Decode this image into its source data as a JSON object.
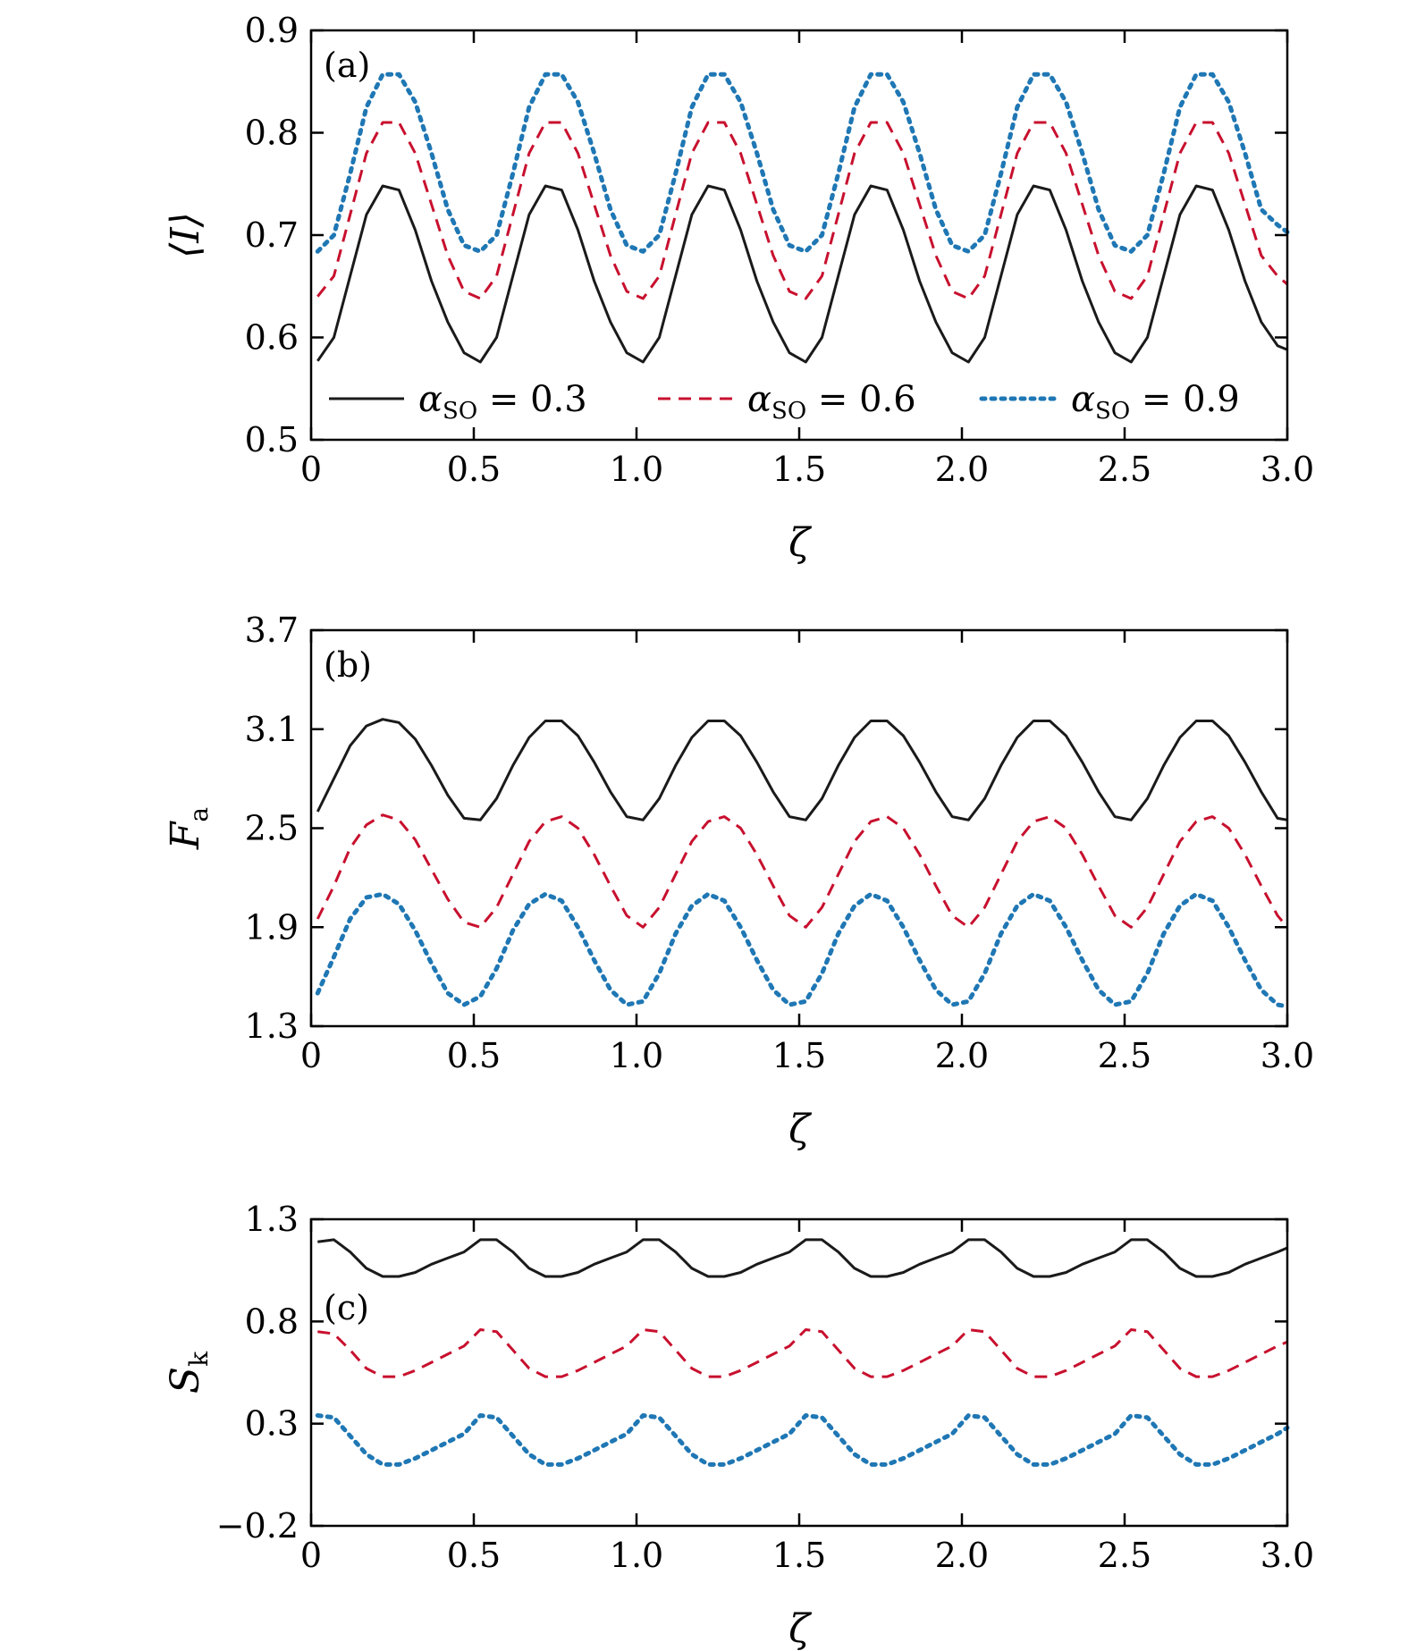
{
  "colors": {
    "series_1": "#1a1a1a",
    "series_2": "#c8102e",
    "series_3": "#1f77b4"
  },
  "legend": {
    "placement": "bottom-inside-panel-a",
    "entries": [
      {
        "symbol": "α",
        "subscript": "SO",
        "rest": " = 0.3",
        "style": "solid"
      },
      {
        "symbol": "α",
        "subscript": "SO",
        "rest": " = 0.6",
        "style": "dashed"
      },
      {
        "symbol": "α",
        "subscript": "SO",
        "rest": " = 0.9",
        "style": "dotted"
      }
    ]
  },
  "chart_data": [
    {
      "type": "line",
      "panel": "(a)",
      "xlabel": "ζ",
      "ylabel": "⟨I⟩",
      "ylabel_sub": "",
      "xlim": [
        0,
        3.0
      ],
      "ylim": [
        0.5,
        0.9
      ],
      "xticks": [
        "0",
        "0.5",
        "1.0",
        "1.5",
        "2.0",
        "2.5",
        "3.0"
      ],
      "yticks": [
        "0.5",
        "0.6",
        "0.7",
        "0.8",
        "0.9"
      ],
      "grid": false,
      "x": [
        0.02,
        0.07,
        0.12,
        0.17,
        0.22,
        0.27,
        0.32,
        0.37,
        0.42,
        0.47,
        0.52,
        0.57,
        0.62,
        0.67,
        0.72,
        0.77,
        0.82,
        0.87,
        0.92,
        0.97,
        1.02,
        1.07,
        1.12,
        1.17,
        1.22,
        1.27,
        1.32,
        1.37,
        1.42,
        1.47,
        1.52,
        1.57,
        1.62,
        1.67,
        1.72,
        1.77,
        1.82,
        1.87,
        1.92,
        1.97,
        2.02,
        2.07,
        2.12,
        2.17,
        2.22,
        2.27,
        2.32,
        2.37,
        2.42,
        2.47,
        2.52,
        2.57,
        2.62,
        2.67,
        2.72,
        2.77,
        2.82,
        2.87,
        2.92,
        2.97,
        3.0
      ],
      "series": [
        {
          "style": "solid",
          "values": [
            0.577,
            0.6,
            0.66,
            0.72,
            0.748,
            0.744,
            0.705,
            0.655,
            0.615,
            0.585,
            0.576,
            0.6,
            0.66,
            0.72,
            0.748,
            0.744,
            0.705,
            0.655,
            0.615,
            0.585,
            0.576,
            0.6,
            0.66,
            0.72,
            0.748,
            0.744,
            0.705,
            0.655,
            0.615,
            0.585,
            0.576,
            0.6,
            0.66,
            0.72,
            0.748,
            0.744,
            0.705,
            0.655,
            0.615,
            0.585,
            0.576,
            0.6,
            0.66,
            0.72,
            0.748,
            0.744,
            0.705,
            0.655,
            0.615,
            0.585,
            0.576,
            0.6,
            0.66,
            0.72,
            0.748,
            0.744,
            0.705,
            0.655,
            0.615,
            0.592,
            0.588
          ]
        },
        {
          "style": "dashed",
          "values": [
            0.64,
            0.66,
            0.72,
            0.78,
            0.81,
            0.81,
            0.78,
            0.73,
            0.68,
            0.645,
            0.638,
            0.66,
            0.72,
            0.78,
            0.81,
            0.81,
            0.78,
            0.73,
            0.68,
            0.645,
            0.638,
            0.66,
            0.72,
            0.78,
            0.81,
            0.81,
            0.78,
            0.73,
            0.68,
            0.645,
            0.638,
            0.66,
            0.72,
            0.78,
            0.81,
            0.81,
            0.78,
            0.73,
            0.68,
            0.645,
            0.638,
            0.66,
            0.72,
            0.78,
            0.81,
            0.81,
            0.78,
            0.73,
            0.68,
            0.645,
            0.638,
            0.66,
            0.72,
            0.78,
            0.81,
            0.81,
            0.78,
            0.73,
            0.68,
            0.66,
            0.652
          ]
        },
        {
          "style": "dotted",
          "values": [
            0.684,
            0.7,
            0.76,
            0.825,
            0.857,
            0.857,
            0.83,
            0.78,
            0.725,
            0.69,
            0.684,
            0.7,
            0.76,
            0.825,
            0.857,
            0.857,
            0.83,
            0.78,
            0.725,
            0.69,
            0.684,
            0.7,
            0.76,
            0.825,
            0.857,
            0.857,
            0.83,
            0.78,
            0.725,
            0.69,
            0.684,
            0.7,
            0.76,
            0.825,
            0.857,
            0.857,
            0.83,
            0.78,
            0.725,
            0.69,
            0.684,
            0.7,
            0.76,
            0.825,
            0.857,
            0.857,
            0.83,
            0.78,
            0.725,
            0.69,
            0.684,
            0.7,
            0.76,
            0.825,
            0.857,
            0.857,
            0.83,
            0.78,
            0.725,
            0.71,
            0.703
          ]
        }
      ]
    },
    {
      "type": "line",
      "panel": "(b)",
      "xlabel": "ζ",
      "ylabel": "F",
      "ylabel_sub": "a",
      "xlim": [
        0,
        3.0
      ],
      "ylim": [
        1.3,
        3.7
      ],
      "xticks": [
        "0",
        "0.5",
        "1.0",
        "1.5",
        "2.0",
        "2.5",
        "3.0"
      ],
      "yticks": [
        "1.3",
        "1.9",
        "2.5",
        "3.1",
        "3.7"
      ],
      "grid": false,
      "x": [
        0.02,
        0.07,
        0.12,
        0.17,
        0.22,
        0.27,
        0.32,
        0.37,
        0.42,
        0.47,
        0.52,
        0.57,
        0.62,
        0.67,
        0.72,
        0.77,
        0.82,
        0.87,
        0.92,
        0.97,
        1.02,
        1.07,
        1.12,
        1.17,
        1.22,
        1.27,
        1.32,
        1.37,
        1.42,
        1.47,
        1.52,
        1.57,
        1.62,
        1.67,
        1.72,
        1.77,
        1.82,
        1.87,
        1.92,
        1.97,
        2.02,
        2.07,
        2.12,
        2.17,
        2.22,
        2.27,
        2.32,
        2.37,
        2.42,
        2.47,
        2.52,
        2.57,
        2.62,
        2.67,
        2.72,
        2.77,
        2.82,
        2.87,
        2.92,
        2.97,
        3.0
      ],
      "series": [
        {
          "style": "solid",
          "values": [
            2.6,
            2.8,
            3.0,
            3.12,
            3.16,
            3.14,
            3.04,
            2.88,
            2.7,
            2.56,
            2.55,
            2.68,
            2.88,
            3.05,
            3.15,
            3.15,
            3.06,
            2.9,
            2.72,
            2.57,
            2.55,
            2.68,
            2.88,
            3.05,
            3.15,
            3.15,
            3.06,
            2.9,
            2.72,
            2.57,
            2.55,
            2.68,
            2.88,
            3.05,
            3.15,
            3.15,
            3.06,
            2.9,
            2.72,
            2.57,
            2.55,
            2.68,
            2.88,
            3.05,
            3.15,
            3.15,
            3.06,
            2.9,
            2.72,
            2.57,
            2.55,
            2.68,
            2.88,
            3.05,
            3.15,
            3.15,
            3.06,
            2.9,
            2.72,
            2.56,
            2.55
          ]
        },
        {
          "style": "dashed",
          "values": [
            1.95,
            2.15,
            2.38,
            2.52,
            2.58,
            2.55,
            2.43,
            2.25,
            2.07,
            1.93,
            1.9,
            2.02,
            2.22,
            2.42,
            2.54,
            2.57,
            2.5,
            2.34,
            2.15,
            1.97,
            1.9,
            2.02,
            2.22,
            2.42,
            2.54,
            2.57,
            2.5,
            2.34,
            2.15,
            1.97,
            1.9,
            2.02,
            2.22,
            2.42,
            2.54,
            2.57,
            2.5,
            2.34,
            2.15,
            1.97,
            1.9,
            2.02,
            2.22,
            2.42,
            2.54,
            2.57,
            2.5,
            2.34,
            2.15,
            1.97,
            1.9,
            2.02,
            2.22,
            2.42,
            2.54,
            2.57,
            2.5,
            2.34,
            2.15,
            1.97,
            1.9
          ]
        },
        {
          "style": "dotted",
          "values": [
            1.5,
            1.72,
            1.95,
            2.08,
            2.1,
            2.04,
            1.88,
            1.68,
            1.5,
            1.43,
            1.48,
            1.65,
            1.88,
            2.04,
            2.1,
            2.06,
            1.9,
            1.7,
            1.52,
            1.43,
            1.45,
            1.62,
            1.86,
            2.03,
            2.1,
            2.06,
            1.9,
            1.7,
            1.52,
            1.43,
            1.45,
            1.62,
            1.86,
            2.03,
            2.1,
            2.06,
            1.9,
            1.7,
            1.52,
            1.43,
            1.45,
            1.62,
            1.86,
            2.03,
            2.1,
            2.06,
            1.9,
            1.7,
            1.52,
            1.43,
            1.45,
            1.62,
            1.86,
            2.03,
            2.1,
            2.06,
            1.9,
            1.7,
            1.52,
            1.43,
            1.42
          ]
        }
      ]
    },
    {
      "type": "line",
      "panel": "(c)",
      "xlabel": "ζ",
      "ylabel": "S",
      "ylabel_sub": "k",
      "xlim": [
        0,
        3.0
      ],
      "ylim": [
        -0.2,
        1.3
      ],
      "xticks": [
        "0",
        "0.5",
        "1.0",
        "1.5",
        "2.0",
        "2.5",
        "3.0"
      ],
      "yticks": [
        "−0.2",
        "0.3",
        "0.8",
        "1.3"
      ],
      "grid": false,
      "x": [
        0.02,
        0.07,
        0.12,
        0.17,
        0.22,
        0.27,
        0.32,
        0.37,
        0.42,
        0.47,
        0.52,
        0.57,
        0.62,
        0.67,
        0.72,
        0.77,
        0.82,
        0.87,
        0.92,
        0.97,
        1.02,
        1.07,
        1.12,
        1.17,
        1.22,
        1.27,
        1.32,
        1.37,
        1.42,
        1.47,
        1.52,
        1.57,
        1.62,
        1.67,
        1.72,
        1.77,
        1.82,
        1.87,
        1.92,
        1.97,
        2.02,
        2.07,
        2.12,
        2.17,
        2.22,
        2.27,
        2.32,
        2.37,
        2.42,
        2.47,
        2.52,
        2.57,
        2.62,
        2.67,
        2.72,
        2.77,
        2.82,
        2.87,
        2.92,
        2.97,
        3.0
      ],
      "series": [
        {
          "style": "solid",
          "values": [
            1.19,
            1.2,
            1.14,
            1.06,
            1.02,
            1.02,
            1.04,
            1.08,
            1.11,
            1.14,
            1.2,
            1.2,
            1.14,
            1.06,
            1.02,
            1.02,
            1.04,
            1.08,
            1.11,
            1.14,
            1.2,
            1.2,
            1.14,
            1.06,
            1.02,
            1.02,
            1.04,
            1.08,
            1.11,
            1.14,
            1.2,
            1.2,
            1.14,
            1.06,
            1.02,
            1.02,
            1.04,
            1.08,
            1.11,
            1.14,
            1.2,
            1.2,
            1.14,
            1.06,
            1.02,
            1.02,
            1.04,
            1.08,
            1.11,
            1.14,
            1.2,
            1.2,
            1.14,
            1.06,
            1.02,
            1.02,
            1.04,
            1.08,
            1.11,
            1.14,
            1.16
          ]
        },
        {
          "style": "dashed",
          "values": [
            0.75,
            0.74,
            0.66,
            0.57,
            0.53,
            0.53,
            0.56,
            0.6,
            0.64,
            0.68,
            0.76,
            0.75,
            0.66,
            0.57,
            0.53,
            0.53,
            0.56,
            0.6,
            0.64,
            0.68,
            0.76,
            0.75,
            0.66,
            0.57,
            0.53,
            0.53,
            0.56,
            0.6,
            0.64,
            0.68,
            0.76,
            0.75,
            0.66,
            0.57,
            0.53,
            0.53,
            0.56,
            0.6,
            0.64,
            0.68,
            0.76,
            0.75,
            0.66,
            0.57,
            0.53,
            0.53,
            0.56,
            0.6,
            0.64,
            0.68,
            0.76,
            0.75,
            0.66,
            0.57,
            0.53,
            0.53,
            0.56,
            0.6,
            0.64,
            0.68,
            0.7
          ]
        },
        {
          "style": "dotted",
          "values": [
            0.34,
            0.33,
            0.24,
            0.15,
            0.1,
            0.1,
            0.13,
            0.17,
            0.21,
            0.25,
            0.34,
            0.33,
            0.24,
            0.15,
            0.1,
            0.1,
            0.13,
            0.17,
            0.21,
            0.25,
            0.34,
            0.33,
            0.24,
            0.15,
            0.1,
            0.1,
            0.13,
            0.17,
            0.21,
            0.25,
            0.34,
            0.33,
            0.24,
            0.15,
            0.1,
            0.1,
            0.13,
            0.17,
            0.21,
            0.25,
            0.34,
            0.33,
            0.24,
            0.15,
            0.1,
            0.1,
            0.13,
            0.17,
            0.21,
            0.25,
            0.34,
            0.33,
            0.24,
            0.15,
            0.1,
            0.1,
            0.13,
            0.17,
            0.21,
            0.25,
            0.28
          ]
        }
      ]
    }
  ]
}
